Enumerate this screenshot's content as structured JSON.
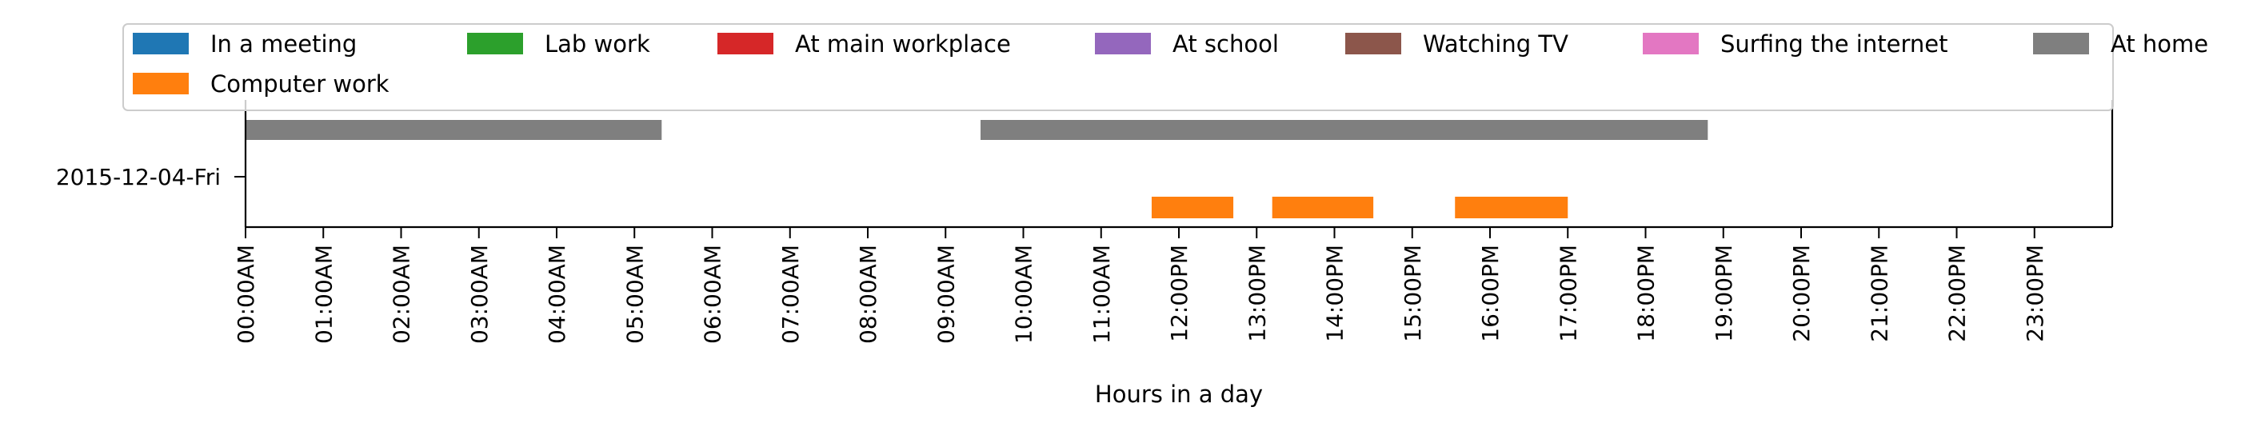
{
  "chart_data": {
    "type": "timeline",
    "xlabel": "Hours in a day",
    "xlim": [
      0,
      24
    ],
    "row_label": "2015-12-04-Fri",
    "x_ticks": [
      "00:00AM",
      "01:00AM",
      "02:00AM",
      "03:00AM",
      "04:00AM",
      "05:00AM",
      "06:00AM",
      "07:00AM",
      "08:00AM",
      "09:00AM",
      "10:00AM",
      "11:00AM",
      "12:00PM",
      "13:00PM",
      "14:00PM",
      "15:00PM",
      "16:00PM",
      "17:00PM",
      "18:00PM",
      "19:00PM",
      "20:00PM",
      "21:00PM",
      "22:00PM",
      "23:00PM"
    ],
    "legend_placement": "top",
    "series": [
      {
        "name": "In a meeting",
        "color": "#1f77b4",
        "segments": []
      },
      {
        "name": "Computer work",
        "color": "#ff7f0e",
        "segments": [
          [
            11.65,
            12.7
          ],
          [
            13.2,
            14.5
          ],
          [
            15.55,
            17.0
          ]
        ]
      },
      {
        "name": "Lab work",
        "color": "#2ca02c",
        "segments": []
      },
      {
        "name": "At main workplace",
        "color": "#d62728",
        "segments": []
      },
      {
        "name": "At school",
        "color": "#9467bd",
        "segments": []
      },
      {
        "name": "Watching TV",
        "color": "#8c564b",
        "segments": []
      },
      {
        "name": "Surfing the internet",
        "color": "#e377c2",
        "segments": []
      },
      {
        "name": "At home",
        "color": "#7f7f7f",
        "segments": [
          [
            0.0,
            5.35
          ],
          [
            9.45,
            18.8
          ]
        ]
      }
    ]
  }
}
